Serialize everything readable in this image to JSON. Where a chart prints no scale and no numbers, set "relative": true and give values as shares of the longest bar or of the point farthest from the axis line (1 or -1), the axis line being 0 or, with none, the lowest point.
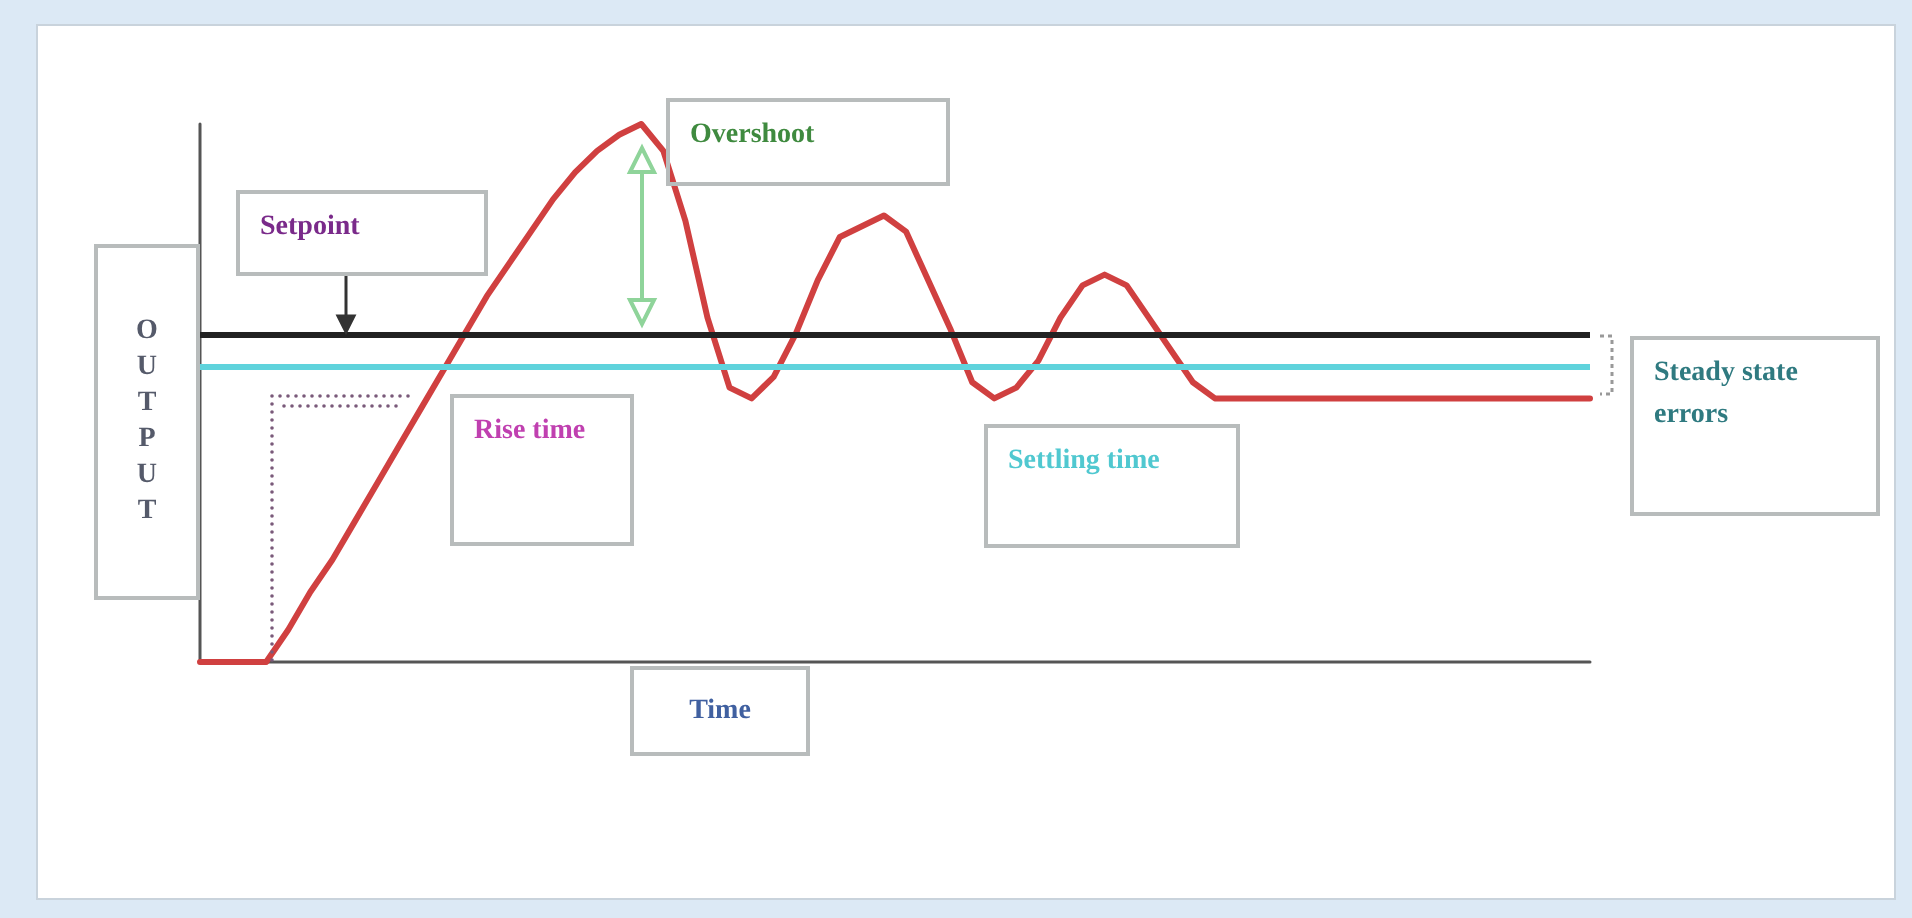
{
  "chart_data": {
    "type": "line",
    "relative": true,
    "xlabel": "Time",
    "ylabel": "OUTPUT",
    "categories": [
      null,
      null,
      null,
      null,
      null,
      null,
      null,
      null,
      null,
      null,
      null,
      null,
      null,
      null,
      null,
      null,
      null,
      null,
      null,
      null,
      null,
      null,
      null,
      null,
      null,
      null,
      null,
      null,
      null,
      null,
      null,
      null,
      null,
      null,
      null,
      null,
      null,
      null,
      null,
      null,
      null,
      null,
      null,
      null,
      null,
      null,
      null,
      null,
      null,
      null,
      null,
      null,
      null,
      null,
      null,
      null,
      null,
      null,
      null,
      null,
      null,
      null,
      null,
      null
    ],
    "series": [
      {
        "color": "#d04040",
        "values": [
          0,
          0,
          0,
          0,
          0.06,
          0.13,
          0.19,
          0.26,
          0.33,
          0.4,
          0.47,
          0.54,
          0.61,
          0.68,
          0.74,
          0.8,
          0.86,
          0.91,
          0.95,
          0.98,
          1,
          0.95,
          0.82,
          0.64,
          0.51,
          0.49,
          0.53,
          0.61,
          0.71,
          0.79,
          0.81,
          0.83,
          0.8,
          0.71,
          0.62,
          0.52,
          0.49,
          0.51,
          0.56,
          0.64,
          0.7,
          0.72,
          0.7,
          0.64,
          0.58,
          0.52,
          0.49,
          0.49,
          0.49,
          0.49,
          0.49,
          0.49,
          0.49,
          0.49,
          0.49,
          0.49,
          0.49,
          0.49,
          0.49,
          0.49,
          0.49,
          0.49,
          0.49,
          0.49
        ]
      }
    ],
    "ref_lines": [
      {
        "axis": "y",
        "value": 0.61,
        "color": "#222222"
      },
      {
        "axis": "y",
        "value": 0.55,
        "color": "#5fd3dc"
      }
    ],
    "annotations": [
      "Setpoint",
      "Overshoot",
      "Rise time",
      "Settling time",
      "Steady state errors"
    ],
    "grid": false,
    "marker": "none",
    "line_style": "solid"
  }
}
